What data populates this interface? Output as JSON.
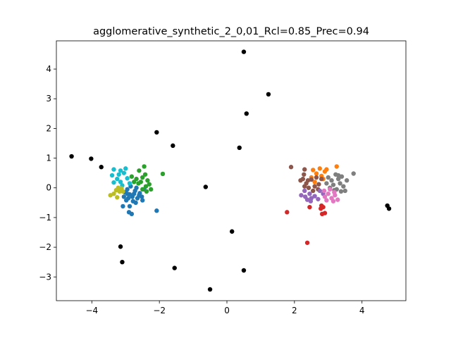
{
  "chart_data": {
    "type": "scatter",
    "title": "agglomerative_synthetic_2_0,01_Rcl=0.85_Prec=0.94",
    "xlabel": "",
    "ylabel": "",
    "xlim": [
      -5.05,
      5.3
    ],
    "ylim": [
      -3.8,
      4.95
    ],
    "xticks": [
      -4,
      -2,
      0,
      2,
      4
    ],
    "yticks": [
      -3,
      -2,
      -1,
      0,
      1,
      2,
      3,
      4
    ],
    "xtick_labels": [
      "−4",
      "−2",
      "0",
      "2",
      "4"
    ],
    "ytick_labels": [
      "−3",
      "−2",
      "−1",
      "0",
      "1",
      "2",
      "3",
      "4"
    ],
    "grid": false,
    "legend": "none",
    "series": [
      {
        "color": "#000000",
        "points": [
          [
            0.5,
            4.58
          ],
          [
            1.23,
            3.15
          ],
          [
            0.58,
            2.5
          ],
          [
            -2.08,
            1.87
          ],
          [
            -1.6,
            1.42
          ],
          [
            0.37,
            1.35
          ],
          [
            -4.6,
            1.06
          ],
          [
            -4.02,
            0.98
          ],
          [
            -3.72,
            0.7
          ],
          [
            -0.63,
            0.03
          ],
          [
            0.15,
            -1.47
          ],
          [
            -3.15,
            -1.98
          ],
          [
            -3.1,
            -2.5
          ],
          [
            -1.55,
            -2.7
          ],
          [
            0.5,
            -2.78
          ],
          [
            -0.5,
            -3.42
          ],
          [
            4.75,
            -0.6
          ],
          [
            4.8,
            -0.7
          ]
        ]
      },
      {
        "color": "#1f77b4",
        "points": [
          [
            -3.02,
            -0.15
          ],
          [
            -2.95,
            -0.05
          ],
          [
            -2.88,
            -0.22
          ],
          [
            -2.8,
            -0.3
          ],
          [
            -2.72,
            -0.1
          ],
          [
            -2.65,
            -0.35
          ],
          [
            -2.58,
            -0.18
          ],
          [
            -2.5,
            -0.42
          ],
          [
            -2.45,
            -0.05
          ],
          [
            -2.85,
            0.05
          ],
          [
            -2.78,
            -0.45
          ],
          [
            -2.92,
            -0.35
          ],
          [
            -3.05,
            -0.3
          ],
          [
            -2.7,
            -0.5
          ],
          [
            -2.6,
            -0.25
          ],
          [
            -2.52,
            -0.3
          ],
          [
            -2.98,
            -0.42
          ],
          [
            -3.08,
            -0.62
          ],
          [
            -2.88,
            -0.62
          ],
          [
            -2.9,
            -0.82
          ],
          [
            -2.82,
            -0.88
          ],
          [
            -2.08,
            -0.77
          ],
          [
            -2.75,
            -0.2
          ],
          [
            -2.95,
            -0.2
          ],
          [
            -2.68,
            0.0
          ]
        ]
      },
      {
        "color": "#2ca02c",
        "points": [
          [
            -2.45,
            0.72
          ],
          [
            -2.5,
            0.35
          ],
          [
            -2.42,
            0.45
          ],
          [
            -2.35,
            0.25
          ],
          [
            -2.55,
            0.2
          ],
          [
            -2.3,
            0.12
          ],
          [
            -2.4,
            0.05
          ],
          [
            -2.62,
            0.15
          ],
          [
            -2.68,
            0.3
          ],
          [
            -2.25,
            -0.05
          ],
          [
            -2.5,
            -0.05
          ],
          [
            -2.6,
            0.58
          ],
          [
            -2.75,
            0.2
          ],
          [
            -2.82,
            0.38
          ],
          [
            -1.9,
            0.47
          ],
          [
            -2.38,
            -0.12
          ]
        ]
      },
      {
        "color": "#17becf",
        "points": [
          [
            -3.35,
            0.62
          ],
          [
            -3.15,
            0.58
          ],
          [
            -3.0,
            0.65
          ],
          [
            -3.05,
            0.5
          ],
          [
            -3.25,
            0.3
          ],
          [
            -3.15,
            0.2
          ],
          [
            -3.35,
            0.18
          ],
          [
            -2.95,
            0.32
          ],
          [
            -3.4,
            0.42
          ],
          [
            -3.1,
            0.08
          ],
          [
            -2.88,
            0.15
          ],
          [
            -3.2,
            0.45
          ]
        ]
      },
      {
        "color": "#bcbd22",
        "points": [
          [
            -3.45,
            -0.25
          ],
          [
            -3.35,
            -0.2
          ],
          [
            -3.25,
            -0.32
          ],
          [
            -3.28,
            -0.08
          ],
          [
            -3.18,
            -0.12
          ],
          [
            -3.08,
            -0.12
          ],
          [
            -3.12,
            -0.02
          ],
          [
            -3.22,
            0.0
          ]
        ]
      },
      {
        "color": "#ff7f0e",
        "points": [
          [
            2.55,
            0.6
          ],
          [
            2.75,
            0.65
          ],
          [
            2.9,
            0.55
          ],
          [
            2.65,
            0.48
          ],
          [
            2.8,
            0.4
          ],
          [
            2.5,
            0.35
          ],
          [
            2.95,
            0.62
          ],
          [
            3.25,
            0.72
          ],
          [
            2.6,
            0.2
          ],
          [
            2.85,
            0.3
          ]
        ]
      },
      {
        "color": "#8c564b",
        "points": [
          [
            1.9,
            0.7
          ],
          [
            2.3,
            0.62
          ],
          [
            2.28,
            0.45
          ],
          [
            2.25,
            0.3
          ],
          [
            2.35,
            0.15
          ],
          [
            2.42,
            0.0
          ],
          [
            2.5,
            0.28
          ],
          [
            2.6,
            0.05
          ],
          [
            2.72,
            0.12
          ],
          [
            2.8,
            0.3
          ],
          [
            2.55,
            -0.1
          ],
          [
            2.4,
            0.25
          ],
          [
            2.18,
            0.25
          ],
          [
            2.65,
            0.35
          ],
          [
            2.7,
            -0.05
          ],
          [
            2.3,
            0.05
          ]
        ]
      },
      {
        "color": "#7f7f7f",
        "points": [
          [
            3.0,
            0.35
          ],
          [
            3.1,
            0.25
          ],
          [
            3.22,
            0.45
          ],
          [
            3.3,
            0.3
          ],
          [
            3.4,
            0.38
          ],
          [
            3.15,
            0.1
          ],
          [
            3.35,
            0.15
          ],
          [
            3.45,
            0.05
          ],
          [
            3.5,
            -0.1
          ],
          [
            3.25,
            -0.05
          ],
          [
            3.05,
            0.0
          ],
          [
            2.95,
            0.15
          ],
          [
            3.3,
            0.42
          ],
          [
            3.75,
            0.48
          ],
          [
            3.55,
            0.25
          ],
          [
            3.38,
            -0.12
          ],
          [
            3.18,
            -0.08
          ]
        ]
      },
      {
        "color": "#9467bd",
        "points": [
          [
            2.2,
            -0.25
          ],
          [
            2.32,
            -0.3
          ],
          [
            2.45,
            -0.2
          ],
          [
            2.38,
            -0.4
          ],
          [
            2.5,
            -0.35
          ],
          [
            2.6,
            -0.28
          ],
          [
            2.48,
            -0.45
          ],
          [
            2.7,
            -0.38
          ],
          [
            2.85,
            -0.2
          ],
          [
            2.75,
            -0.1
          ],
          [
            2.3,
            -0.1
          ]
        ]
      },
      {
        "color": "#e377c2",
        "points": [
          [
            2.9,
            -0.3
          ],
          [
            3.0,
            -0.2
          ],
          [
            3.1,
            -0.35
          ],
          [
            3.2,
            -0.25
          ],
          [
            2.95,
            -0.42
          ],
          [
            3.15,
            -0.45
          ],
          [
            3.28,
            -0.4
          ],
          [
            2.88,
            -0.1
          ],
          [
            3.05,
            -0.05
          ],
          [
            3.18,
            -0.15
          ]
        ]
      },
      {
        "color": "#d62728",
        "points": [
          [
            1.78,
            -0.82
          ],
          [
            2.45,
            -0.65
          ],
          [
            2.8,
            -0.6
          ],
          [
            2.85,
            -0.65
          ],
          [
            2.82,
            -0.88
          ],
          [
            2.9,
            -0.85
          ],
          [
            2.38,
            -1.85
          ],
          [
            2.78,
            -0.7
          ]
        ]
      }
    ]
  }
}
